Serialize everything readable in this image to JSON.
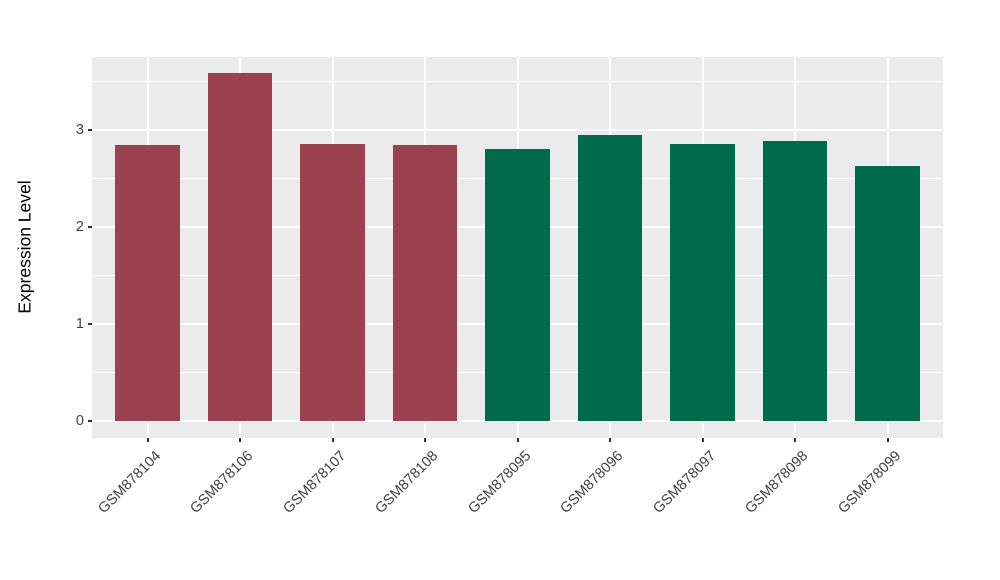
{
  "chart_data": {
    "type": "bar",
    "title": "",
    "ylabel": "Expression Level",
    "xlabel": "",
    "categories": [
      "GSM878104",
      "GSM878106",
      "GSM878107",
      "GSM878108",
      "GSM878095",
      "GSM878096",
      "GSM878097",
      "GSM878098",
      "GSM878099"
    ],
    "values": [
      2.84,
      3.58,
      2.85,
      2.84,
      2.8,
      2.95,
      2.85,
      2.88,
      2.63
    ],
    "bar_colors": [
      "#9B4150",
      "#9B4150",
      "#9B4150",
      "#9B4150",
      "#006B4B",
      "#006B4B",
      "#006B4B",
      "#006B4B",
      "#006B4B"
    ],
    "bar_width": 0.7,
    "yticks": [
      0,
      1,
      2,
      3
    ],
    "yticks_minor": [
      0.5,
      1.5,
      2.5,
      3.5
    ],
    "ylim": [
      -0.18,
      3.75
    ],
    "grid": "major+minor",
    "legend": "none",
    "colors": {
      "panel_bg": "#EBEBEB",
      "grid": "#FFFFFF",
      "tick": "#333333",
      "axis_text": "#404040",
      "red_bars": "#9B4150",
      "green_bars": "#006B4B"
    }
  }
}
